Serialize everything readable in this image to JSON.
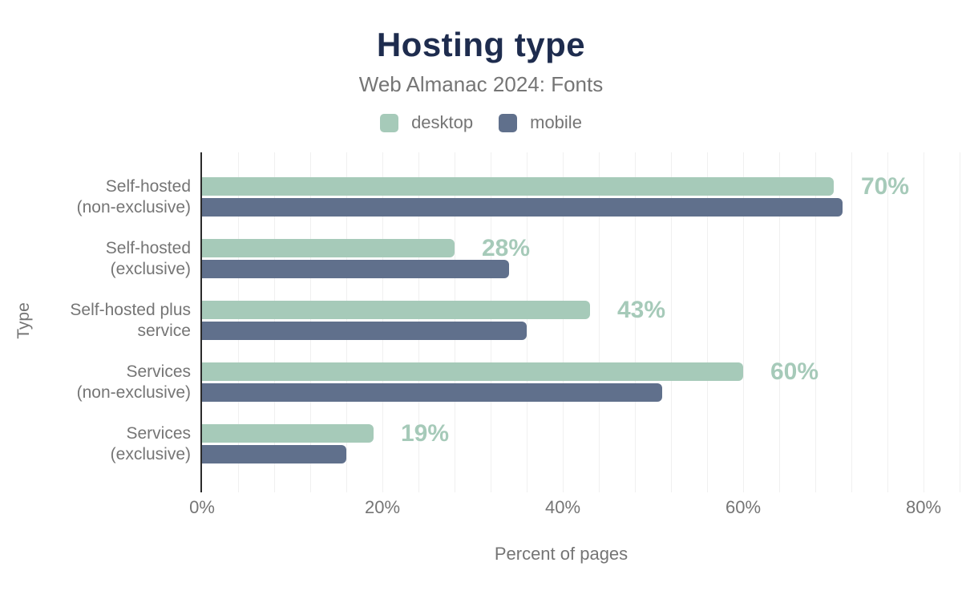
{
  "header": {
    "title": "Hosting type",
    "subtitle": "Web Almanac 2024: Fonts"
  },
  "legend": [
    {
      "label": "desktop",
      "color": "#a6cab9"
    },
    {
      "label": "mobile",
      "color": "#60708c"
    }
  ],
  "colors": {
    "title": "#1e2c4e",
    "gray": "#757575",
    "desktop": "#a6cab9",
    "mobile": "#60708c",
    "grid": "#f0f0f0",
    "axis": "#2b2b2b"
  },
  "chart_data": {
    "type": "bar",
    "orientation": "horizontal",
    "title": "Hosting type",
    "subtitle": "Web Almanac 2024: Fonts",
    "categories": [
      "Self-hosted (non-exclusive)",
      "Self-hosted (exclusive)",
      "Self-hosted plus service",
      "Services (non-exclusive)",
      "Services (exclusive)"
    ],
    "category_lines": [
      [
        "Self-hosted",
        "(non-exclusive)"
      ],
      [
        "Self-hosted",
        "(exclusive)"
      ],
      [
        "Self-hosted plus",
        "service"
      ],
      [
        "Services",
        "(non-exclusive)"
      ],
      [
        "Services",
        "(exclusive)"
      ]
    ],
    "series": [
      {
        "name": "desktop",
        "color": "#a6cab9",
        "values": [
          70,
          28,
          43,
          60,
          19
        ]
      },
      {
        "name": "mobile",
        "color": "#60708c",
        "values": [
          71,
          34,
          36,
          51,
          16
        ]
      }
    ],
    "data_labels": [
      "70%",
      "28%",
      "43%",
      "60%",
      "19%"
    ],
    "xlabel": "Percent of pages",
    "ylabel": "Type",
    "x_ticks": [
      "0%",
      "20%",
      "40%",
      "60%",
      "80%"
    ],
    "x_tick_values": [
      0,
      20,
      40,
      60,
      80
    ],
    "xlim": [
      0,
      84
    ],
    "minor_grid_step_percent": 4,
    "grid": "vertical minor gridlines",
    "legend_position": "top"
  }
}
